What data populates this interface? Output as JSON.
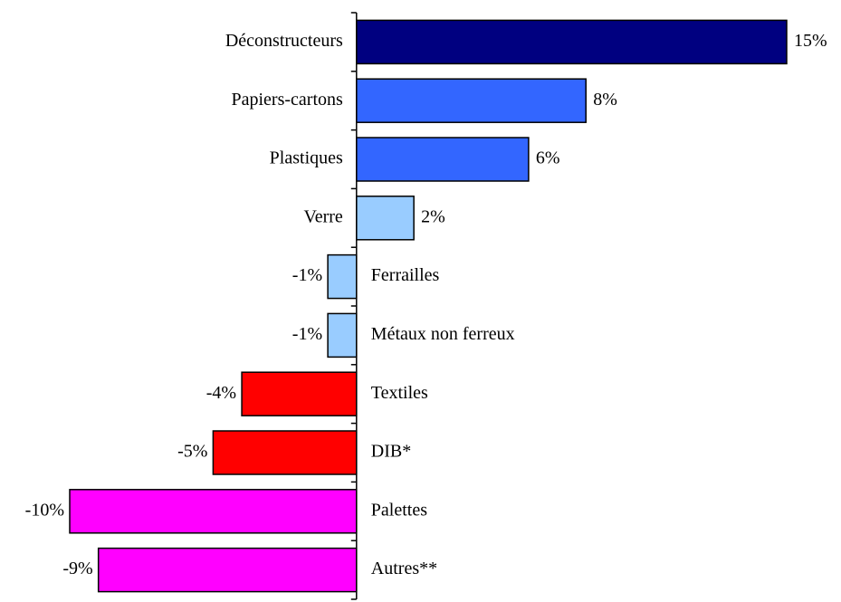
{
  "chart_data": {
    "type": "hbar",
    "categories": [
      "Déconstructeurs",
      "Papiers-cartons",
      "Plastiques",
      "Verre",
      "Ferrailles",
      "Métaux non ferreux",
      "Textiles",
      "DIB*",
      "Palettes",
      "Autres**"
    ],
    "values": [
      15,
      8,
      6,
      2,
      -1,
      -1,
      -4,
      -5,
      -10,
      -9
    ],
    "value_labels": [
      "15%",
      "8%",
      "6%",
      "2%",
      "-1%",
      "-1%",
      "-4%",
      "-5%",
      "-10%",
      "-9%"
    ],
    "colors": [
      "#000080",
      "#3366ff",
      "#3366ff",
      "#99ccff",
      "#99ccff",
      "#99ccff",
      "#ff0000",
      "#ff0000",
      "#ff00ff",
      "#ff00ff"
    ],
    "xlim": [
      -10,
      15
    ]
  }
}
